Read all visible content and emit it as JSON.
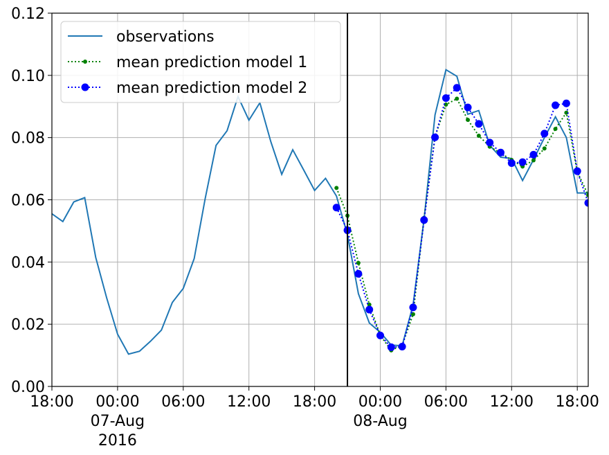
{
  "chart_data": {
    "type": "line",
    "title": "",
    "xlabel": "",
    "ylabel": "",
    "ylim": [
      0,
      0.12
    ],
    "xlim": [
      "2016-08-06 18:00",
      "2016-08-08 19:00"
    ],
    "grid": true,
    "legend": {
      "placement": "top-left"
    },
    "cutoff_line": "2016-08-07 21:00",
    "yticks": [
      "0.00",
      "0.02",
      "0.04",
      "0.06",
      "0.08",
      "0.10",
      "0.12"
    ],
    "xticks": [
      {
        "at": "2016-08-06 18:00",
        "lines": [
          "18:00"
        ]
      },
      {
        "at": "2016-08-07 00:00",
        "lines": [
          "00:00",
          "07-Aug",
          "2016"
        ]
      },
      {
        "at": "2016-08-07 06:00",
        "lines": [
          "06:00"
        ]
      },
      {
        "at": "2016-08-07 12:00",
        "lines": [
          "12:00"
        ]
      },
      {
        "at": "2016-08-07 18:00",
        "lines": [
          "18:00"
        ]
      },
      {
        "at": "2016-08-08 00:00",
        "lines": [
          "00:00",
          "08-Aug"
        ]
      },
      {
        "at": "2016-08-08 06:00",
        "lines": [
          "06:00"
        ]
      },
      {
        "at": "2016-08-08 12:00",
        "lines": [
          "12:00"
        ]
      },
      {
        "at": "2016-08-08 18:00",
        "lines": [
          "18:00"
        ]
      }
    ],
    "series": [
      {
        "name": "observations",
        "color": "#1f77b4",
        "style": "solid",
        "start": "2016-08-06 18:00",
        "step_hours": 1,
        "values": [
          0.0555,
          0.053,
          0.0593,
          0.0607,
          0.0415,
          0.0285,
          0.0168,
          0.0104,
          0.0113,
          0.0145,
          0.0181,
          0.027,
          0.0315,
          0.0411,
          0.0603,
          0.0775,
          0.0822,
          0.0932,
          0.0856,
          0.0912,
          0.0787,
          0.0682,
          0.0761,
          0.0696,
          0.063,
          0.0669,
          0.0612,
          0.0488,
          0.0298,
          0.0204,
          0.0174,
          0.0133,
          0.0131,
          0.0262,
          0.0538,
          0.0873,
          0.1018,
          0.0997,
          0.0875,
          0.0887,
          0.0775,
          0.0737,
          0.0733,
          0.0662,
          0.0729,
          0.08,
          0.0867,
          0.08,
          0.0622,
          0.0622
        ]
      },
      {
        "name": "mean prediction model 1",
        "color": "#008000",
        "style": "dotted",
        "marker": "small-dot",
        "start": "2016-08-07 20:00",
        "step_hours": 1,
        "values": [
          0.0638,
          0.0549,
          0.0397,
          0.0263,
          0.0164,
          0.0116,
          0.0132,
          0.0232,
          0.0542,
          0.0803,
          0.0906,
          0.0925,
          0.0857,
          0.0806,
          0.0771,
          0.075,
          0.0728,
          0.0707,
          0.0727,
          0.0765,
          0.0828,
          0.088,
          0.069,
          0.0615
        ]
      },
      {
        "name": "mean prediction model 2",
        "color": "#0000ff",
        "style": "dotted",
        "marker": "large-dot",
        "start": "2016-08-07 20:00",
        "step_hours": 1,
        "values": [
          0.0575,
          0.0502,
          0.0362,
          0.0247,
          0.0164,
          0.0126,
          0.0128,
          0.0254,
          0.0535,
          0.0801,
          0.0927,
          0.096,
          0.0897,
          0.0844,
          0.0784,
          0.0752,
          0.0718,
          0.0721,
          0.0745,
          0.0813,
          0.0904,
          0.091,
          0.0692,
          0.059
        ]
      }
    ]
  }
}
